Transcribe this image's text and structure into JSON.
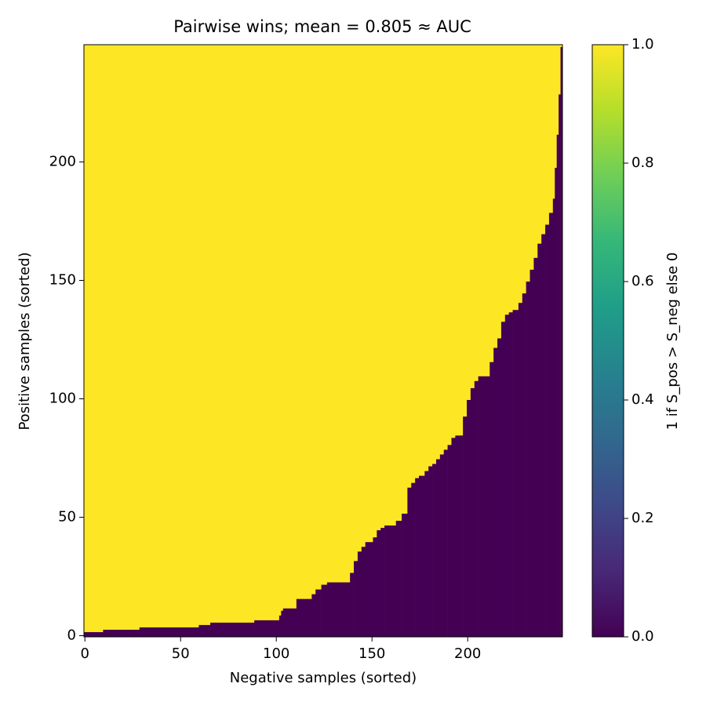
{
  "chart_data": {
    "type": "heatmap",
    "title": "Pairwise wins; mean = 0.805 ≈ AUC",
    "xlabel": "Negative samples (sorted)",
    "ylabel": "Positive samples (sorted)",
    "xlim": [
      -0.5,
      249.5
    ],
    "ylim": [
      -0.5,
      249.5
    ],
    "xticks": [
      0,
      50,
      100,
      150,
      200
    ],
    "yticks": [
      0,
      50,
      100,
      150,
      200
    ],
    "low_color": "#440154",
    "high_color": "#fde725",
    "x": [
      0,
      10,
      29,
      60,
      66,
      89,
      102,
      103,
      104,
      111,
      119,
      121,
      124,
      127,
      139,
      141,
      143,
      145,
      147,
      151,
      153,
      155,
      157,
      163,
      166,
      169,
      171,
      173,
      175,
      178,
      180,
      182,
      184,
      186,
      188,
      190,
      192,
      194,
      198,
      200,
      202,
      204,
      206,
      212,
      214,
      216,
      218,
      220,
      222,
      224,
      227,
      229,
      231,
      233,
      235,
      237,
      239,
      241,
      243,
      245,
      246,
      247,
      248,
      249
    ],
    "values": [
      2,
      3,
      4,
      5,
      6,
      7,
      9,
      11,
      12,
      16,
      18,
      20,
      22,
      23,
      27,
      32,
      36,
      38,
      40,
      42,
      45,
      46,
      47,
      49,
      52,
      63,
      65,
      67,
      68,
      70,
      72,
      73,
      75,
      77,
      79,
      81,
      84,
      85,
      93,
      100,
      105,
      108,
      110,
      116,
      122,
      126,
      133,
      136,
      137,
      138,
      141,
      145,
      150,
      155,
      160,
      166,
      170,
      174,
      179,
      185,
      198,
      212,
      229,
      249
    ],
    "colorbar": {
      "label": "1 if S_pos > S_neg else 0",
      "lim": [
        0,
        1
      ],
      "colors": [
        "#440154",
        "#482878",
        "#3e4989",
        "#31688e",
        "#26828e",
        "#1f9e89",
        "#35b779",
        "#6ece58",
        "#b5de2b",
        "#fde725"
      ],
      "ticks": [
        {
          "value": 0,
          "label": "0.0"
        },
        {
          "value": 0.2,
          "label": "0.2"
        },
        {
          "value": 0.4,
          "label": "0.4"
        },
        {
          "value": 0.6,
          "label": "0.6"
        },
        {
          "value": 0.8,
          "label": "0.8"
        },
        {
          "value": 1,
          "label": "1.0"
        }
      ]
    }
  }
}
